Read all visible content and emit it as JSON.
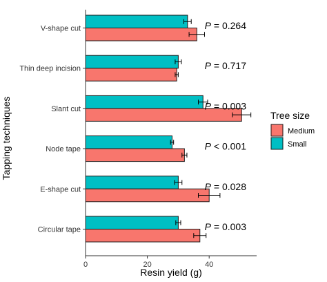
{
  "chart_data": {
    "type": "bar",
    "orientation": "horizontal",
    "xlabel": "Resin yield (g)",
    "ylabel": "Tapping techniques",
    "xlim": [
      0,
      55
    ],
    "xticks": [
      "0",
      "20",
      "40"
    ],
    "xtick_values": [
      0,
      20,
      40
    ],
    "grid": false,
    "legend": {
      "title": "Tree size",
      "position": "right",
      "entries": [
        {
          "label": "Medium",
          "color": "#F8766D"
        },
        {
          "label": "Small",
          "color": "#00BFC4"
        }
      ]
    },
    "categories": [
      "V-shape cut",
      "Thin deep incision",
      "Slant cut",
      "Node tape",
      "E-shape cut",
      "Circular tape"
    ],
    "series": [
      {
        "name": "Small",
        "color": "#00BFC4",
        "values": [
          33,
          30,
          38,
          28,
          30,
          30
        ],
        "errors": [
          1.2,
          1.0,
          1.5,
          0.5,
          1.2,
          0.8
        ]
      },
      {
        "name": "Medium",
        "color": "#F8766D",
        "values": [
          36,
          29.5,
          50.5,
          32,
          40,
          37
        ],
        "errors": [
          2.5,
          0.5,
          3.0,
          0.8,
          3.5,
          2.0
        ]
      }
    ],
    "annotations": [
      {
        "category": "V-shape cut",
        "label": "P",
        "text": " = 0.264"
      },
      {
        "category": "Thin deep incision",
        "label": "P",
        "text": " = 0.717"
      },
      {
        "category": "Slant cut",
        "label": "P",
        "text": " = 0.003"
      },
      {
        "category": "Node tape",
        "label": "P",
        "text": " < 0.001"
      },
      {
        "category": "E-shape cut",
        "label": "P",
        "text": " = 0.028"
      },
      {
        "category": "Circular tape",
        "label": "P",
        "text": " = 0.003"
      }
    ]
  }
}
